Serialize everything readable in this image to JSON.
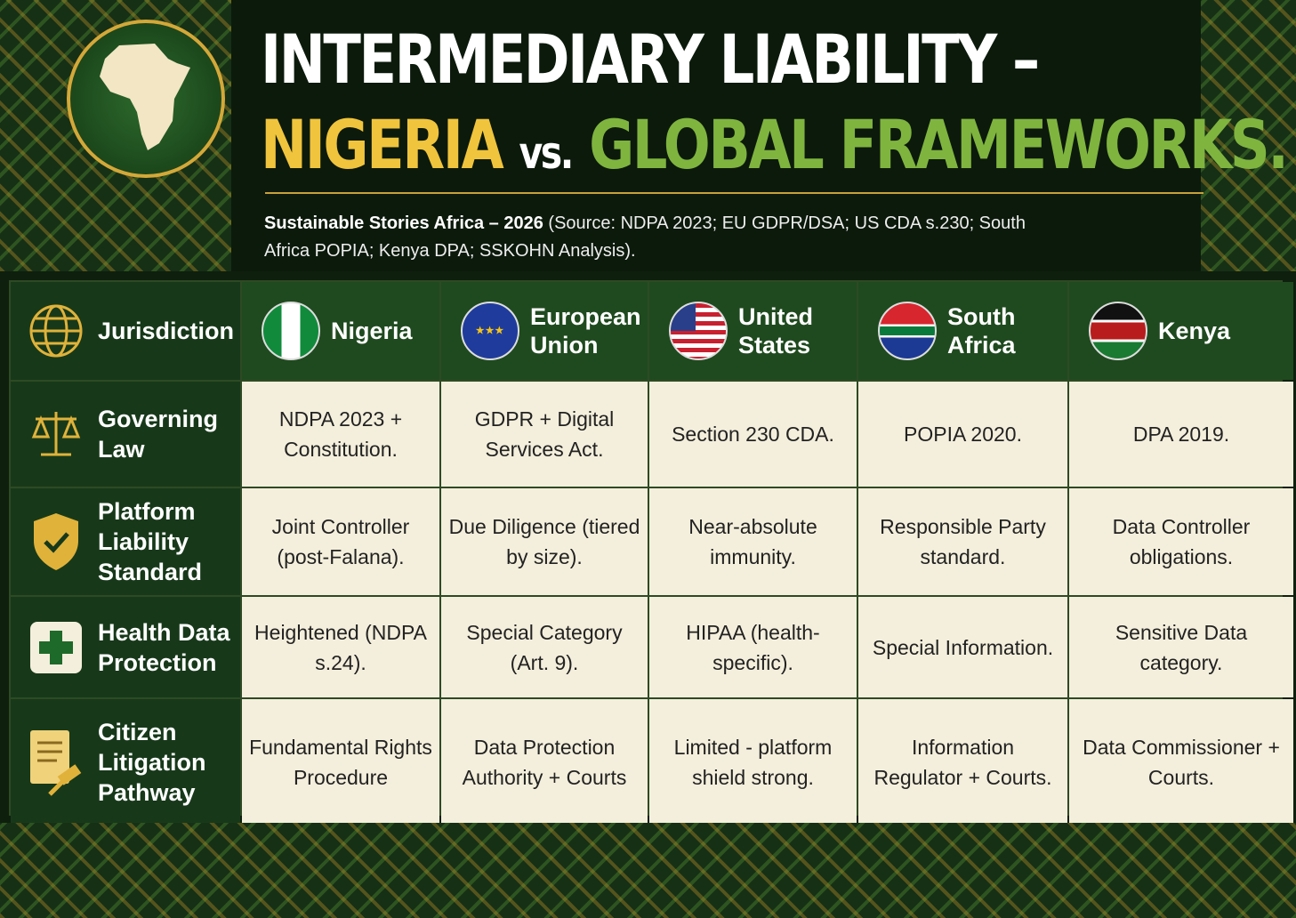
{
  "header": {
    "title_line1": "INTERMEDIARY LIABILITY –",
    "title_nigeria": "NIGERIA",
    "title_vs": "vs.",
    "title_global": "GLOBAL FRAMEWORKS.",
    "subtitle_bold": "Sustainable Stories Africa – 2026",
    "subtitle_rest": "(Source: NDPA 2023; EU GDPR/DSA; US CDA s.230; South Africa POPIA; Kenya DPA; SSKOHN Analysis)."
  },
  "colors": {
    "gold": "#f0c43c",
    "green": "#7fb43f",
    "dark_green": "#17391a",
    "cream": "#f4efdc"
  },
  "table": {
    "corner": {
      "label": "Jurisdiction",
      "icon": "globe-icon"
    },
    "columns": [
      {
        "label": "Nigeria",
        "icon": "nigeria-flag-icon"
      },
      {
        "label": "European Union",
        "icon": "eu-flag-icon"
      },
      {
        "label": "United States",
        "icon": "us-flag-icon"
      },
      {
        "label": "South Africa",
        "icon": "south-africa-flag-icon"
      },
      {
        "label": "Kenya",
        "icon": "kenya-flag-icon"
      }
    ],
    "rows": [
      {
        "label": "Governing Law",
        "icon": "scales-icon",
        "cells": [
          "NDPA 2023 + Constitution.",
          "GDPR + Digital Services Act.",
          "Section 230 CDA.",
          "POPIA 2020.",
          "DPA 2019."
        ]
      },
      {
        "label": "Platform Liability Standard",
        "icon": "shield-check-icon",
        "cells": [
          "Joint Controller (post-Falana).",
          "Due Diligence (tiered by size).",
          "Near-absolute immunity.",
          "Responsible Party standard.",
          "Data Controller obligations."
        ]
      },
      {
        "label": "Health Data Protection",
        "icon": "medical-cross-icon",
        "cells": [
          "Heightened (NDPA s.24).",
          "Special Category (Art. 9).",
          "HIPAA (health-specific).",
          "Special Information.",
          "Sensitive Data category."
        ]
      },
      {
        "label": "Citizen Litigation Pathway",
        "icon": "document-gavel-icon",
        "cells": [
          "Fundamental Rights Procedure",
          "Data Protection Authority + Courts",
          "Limited - platform shield strong.",
          "Information Regulator + Courts.",
          "Data Commissioner + Courts."
        ]
      }
    ]
  }
}
